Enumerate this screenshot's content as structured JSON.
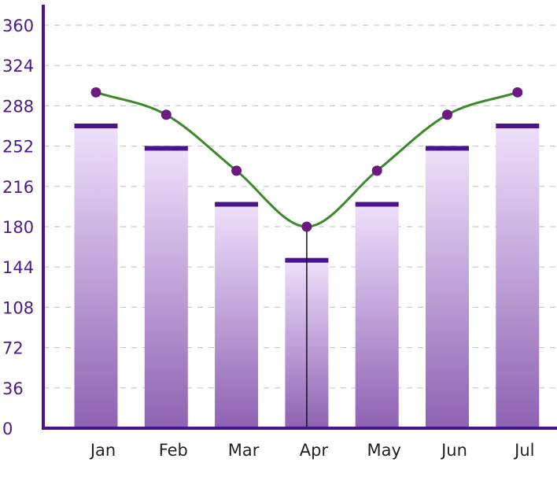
{
  "chart_data": {
    "type": "bar",
    "categories": [
      "Jan",
      "Feb",
      "Mar",
      "Apr",
      "May",
      "Jun",
      "Jul"
    ],
    "series": [
      {
        "type": "bar",
        "values": [
          270,
          250,
          200,
          150,
          200,
          250,
          270
        ]
      },
      {
        "type": "line",
        "values": [
          300,
          280,
          230,
          180,
          230,
          280,
          300
        ]
      }
    ],
    "title": "",
    "xlabel": "",
    "ylabel": "",
    "ylim": [
      0,
      360
    ],
    "yticks": [
      0,
      36,
      72,
      108,
      144,
      180,
      216,
      252,
      288,
      324,
      360
    ],
    "grid": true,
    "highlight_category": "Apr",
    "colors": {
      "bar_top": "#efe0fb",
      "bar_bottom": "#8e62b3",
      "bar_cap": "#4a148c",
      "line": "#3a8a2a",
      "marker": "#6a1a80",
      "axis": "#4a148c",
      "grid": "#c8c8c8"
    }
  }
}
